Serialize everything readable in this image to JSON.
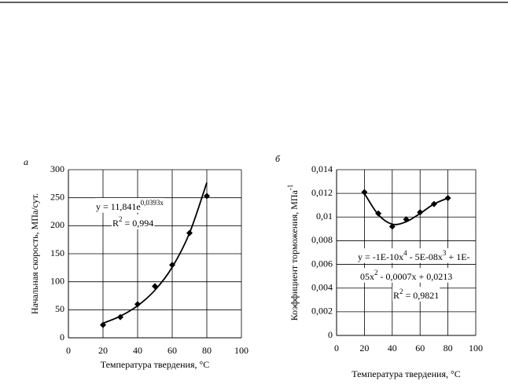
{
  "chart_data": [
    {
      "type": "scatter",
      "panel": "а",
      "x": [
        20,
        30,
        40,
        50,
        60,
        70,
        80
      ],
      "values": [
        23,
        37,
        60,
        92,
        130,
        187,
        253
      ],
      "trendline": {
        "x": [
          20,
          30,
          40,
          50,
          60,
          70,
          80
        ],
        "y": [
          25.9,
          38.6,
          57.2,
          84.9,
          126,
          186.9,
          277
        ]
      },
      "xlim": [
        0,
        100
      ],
      "xticks": [
        0,
        20,
        40,
        60,
        80,
        100
      ],
      "ylim": [
        0,
        300
      ],
      "yticks": [
        0,
        50,
        100,
        150,
        200,
        250,
        300
      ],
      "grid": true,
      "color": "#000000",
      "x_label": "Температура твердения, °C",
      "y_label": [
        {
          "text": "Начальная скорость, МПа/сут."
        }
      ],
      "annotations": [
        [
          {
            "text": "y = 11,841e"
          },
          {
            "sup": "0,0393x"
          }
        ],
        [
          {
            "text": "R"
          },
          {
            "sup": "2"
          },
          {
            "text": " = 0,994"
          }
        ]
      ]
    },
    {
      "type": "scatter",
      "panel": "б",
      "x": [
        20,
        30,
        40,
        50,
        60,
        70,
        80
      ],
      "values": [
        0.0121,
        0.0103,
        0.0092,
        0.0098,
        0.0104,
        0.0111,
        0.0116
      ],
      "trendline": {
        "x": [
          20,
          30,
          40,
          50,
          60,
          70,
          80
        ],
        "y": [
          0.012,
          0.0102,
          0.0094,
          0.0096,
          0.0103,
          0.0111,
          0.0116
        ]
      },
      "xlim": [
        0,
        100
      ],
      "xticks": [
        0,
        20,
        40,
        60,
        80,
        100
      ],
      "ylim": [
        0,
        0.014
      ],
      "yticks": [
        0,
        {
          "value": 0.002,
          "label": "0,002"
        },
        {
          "value": 0.004,
          "label": "0,004"
        },
        {
          "value": 0.006,
          "label": "0,006"
        },
        {
          "value": 0.008,
          "label": "0,008"
        },
        {
          "value": 0.01,
          "label": "0,01"
        },
        {
          "value": 0.012,
          "label": "0,012"
        },
        {
          "value": 0.014,
          "label": "0,014"
        }
      ],
      "grid": true,
      "color": "#000000",
      "x_label": "Температура твердения, °C",
      "y_label": [
        {
          "text": "Коэффициент торможения, МПа"
        },
        {
          "sup": "-1"
        }
      ],
      "annotations": [
        [
          {
            "text": "y = -1E-10x"
          },
          {
            "sup": "4"
          },
          {
            "text": " - 5E-08x"
          },
          {
            "sup": "3"
          },
          {
            "text": " + 1E-"
          }
        ],
        [
          {
            "text": "05x"
          },
          {
            "sup": "2"
          },
          {
            "text": " - 0,0007x + 0,0213"
          }
        ],
        [
          {
            "text": "R"
          },
          {
            "sup": "2"
          },
          {
            "text": " = 0,9821"
          }
        ]
      ]
    }
  ]
}
